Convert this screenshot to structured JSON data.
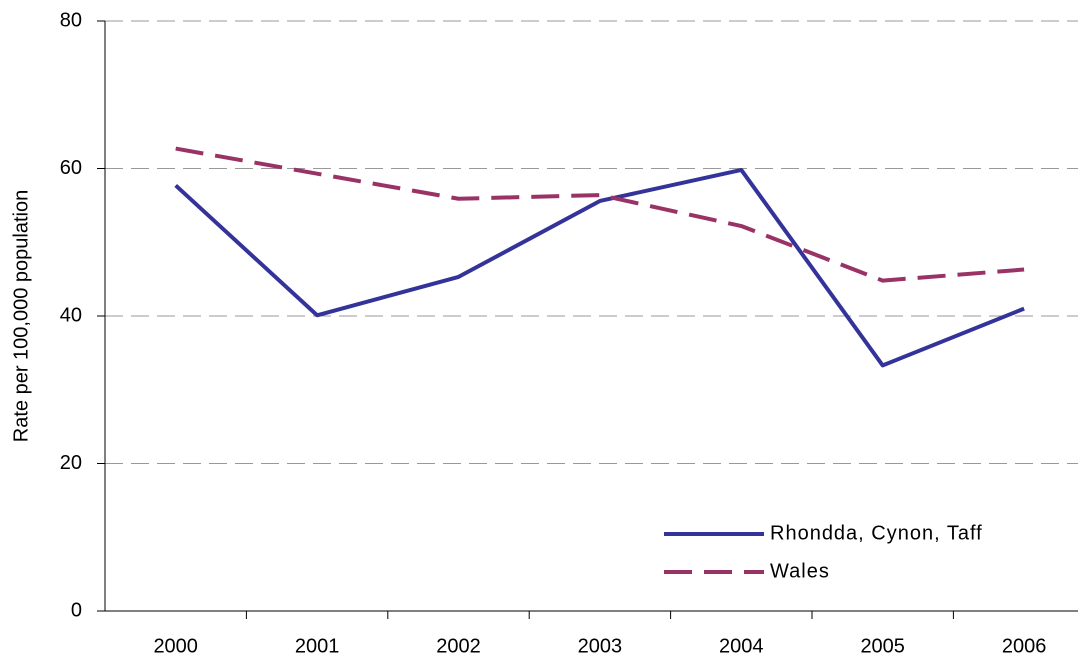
{
  "chart_data": {
    "type": "line",
    "y_label": "Rate per 100,000 population",
    "categories": [
      "2000",
      "2001",
      "2002",
      "2003",
      "2004",
      "2005",
      "2006"
    ],
    "series": [
      {
        "name": "Rhondda, Cynon, Taff",
        "color": "#333399",
        "style": "solid",
        "values": [
          57.7,
          40.1,
          45.3,
          55.6,
          59.8,
          33.3,
          41.0
        ]
      },
      {
        "name": "Wales",
        "color": "#993366",
        "style": "dashed",
        "values": [
          62.7,
          59.3,
          55.9,
          56.4,
          52.2,
          44.8,
          46.3
        ]
      }
    ],
    "ylim": [
      0,
      80
    ],
    "yticks": [
      0,
      20,
      40,
      60,
      80
    ],
    "grid": true,
    "legend": "lower right"
  }
}
